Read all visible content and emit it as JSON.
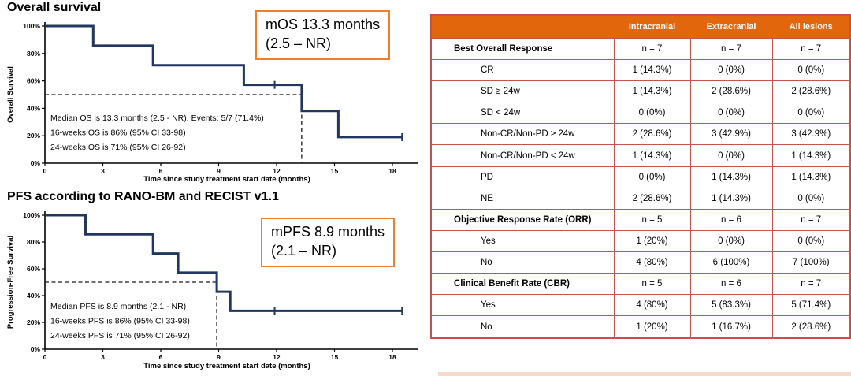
{
  "colors": {
    "navy": "#21375F",
    "orange_header": "#E2660C",
    "table_border": "#C5524B",
    "callout_border": "#ED7D31",
    "dash": "#1A1A1A"
  },
  "chart_data": [
    {
      "type": "line",
      "variant": "kaplan-meier-step",
      "title": "Overall survival",
      "xlabel": "Time since study treatment start date (months)",
      "ylabel": "Overall Survival",
      "xticks": [
        0,
        3,
        6,
        9,
        12,
        15,
        18
      ],
      "yticks": [
        0,
        20,
        40,
        60,
        80,
        100
      ],
      "xlim": [
        0,
        19
      ],
      "ylim": [
        0,
        100
      ],
      "grid": false,
      "step_points": [
        [
          0,
          100
        ],
        [
          2.5,
          100
        ],
        [
          2.5,
          85.7
        ],
        [
          5.6,
          85.7
        ],
        [
          5.6,
          71.4
        ],
        [
          10.3,
          71.4
        ],
        [
          10.3,
          57.1
        ],
        [
          13.3,
          57.1
        ],
        [
          13.3,
          38.1
        ],
        [
          15.2,
          38.1
        ],
        [
          15.2,
          19
        ],
        [
          18.5,
          19
        ]
      ],
      "censor_marks": [
        [
          11.9,
          57.1
        ],
        [
          18.5,
          19
        ]
      ],
      "median_line": {
        "x": 13.3,
        "y": 50
      },
      "annotations": [
        "Median OS is 13.3 months (2.5 - NR). Events: 5/7 (71.4%)",
        "16-weeks OS is 86% (95% CI 33-98)",
        "24-weeks OS is 71% (95% CI 26-92)"
      ],
      "callout": {
        "line1": "mOS 13.3 months",
        "line2": "(2.5 – NR)"
      }
    },
    {
      "type": "line",
      "variant": "kaplan-meier-step",
      "title": "PFS according to RANO-BM and RECIST v1.1",
      "xlabel": "Time since study treatment start date (months)",
      "ylabel": "Progression-Free Survival",
      "xticks": [
        0,
        3,
        6,
        9,
        12,
        15,
        18
      ],
      "yticks": [
        0,
        20,
        40,
        60,
        80,
        100
      ],
      "xlim": [
        0,
        19
      ],
      "ylim": [
        0,
        100
      ],
      "grid": false,
      "step_points": [
        [
          0,
          100
        ],
        [
          2.1,
          100
        ],
        [
          2.1,
          85.7
        ],
        [
          5.6,
          85.7
        ],
        [
          5.6,
          71.4
        ],
        [
          6.9,
          71.4
        ],
        [
          6.9,
          57.1
        ],
        [
          8.9,
          57.1
        ],
        [
          8.9,
          42.9
        ],
        [
          9.6,
          42.9
        ],
        [
          9.6,
          28.6
        ],
        [
          18.5,
          28.6
        ]
      ],
      "censor_marks": [
        [
          11.9,
          28.6
        ],
        [
          18.5,
          28.6
        ]
      ],
      "median_line": {
        "x": 8.9,
        "y": 50
      },
      "annotations": [
        "Median PFS is 8.9 months (2.1 - NR)",
        "16-weeks PFS is 86% (95% CI 33-98)",
        "24-weeks PFS is 71% (95% CI 26-92)"
      ],
      "callout": {
        "line1": "mPFS 8.9 months",
        "line2": "(2.1 – NR)"
      }
    }
  ],
  "table": {
    "columns": [
      "",
      "Intracranial",
      "Extracranial",
      "All lesions"
    ],
    "rows": [
      {
        "label": "Best Overall Response",
        "section": true,
        "values": [
          "n = 7",
          "n = 7",
          "n = 7"
        ]
      },
      {
        "label": "CR",
        "section": false,
        "values": [
          "1 (14.3%)",
          "0 (0%)",
          "0 (0%)"
        ]
      },
      {
        "label": "SD ≥ 24w",
        "section": false,
        "values": [
          "1 (14.3%)",
          "2 (28.6%)",
          "2 (28.6%)"
        ]
      },
      {
        "label": "SD < 24w",
        "section": false,
        "values": [
          "0 (0%)",
          "0 (0%)",
          "0 (0%)"
        ]
      },
      {
        "label": "Non-CR/Non-PD ≥ 24w",
        "section": false,
        "values": [
          "2 (28.6%)",
          "3 (42.9%)",
          "3 (42.9%)"
        ]
      },
      {
        "label": "Non-CR/Non-PD < 24w",
        "section": false,
        "values": [
          "1 (14.3%)",
          "0 (0%)",
          "1 (14.3%)"
        ]
      },
      {
        "label": "PD",
        "section": false,
        "values": [
          "0 (0%)",
          "1 (14.3%)",
          "1 (14.3%)"
        ]
      },
      {
        "label": "NE",
        "section": false,
        "values": [
          "2 (28.6%)",
          "1 (14.3%)",
          "0 (0%)"
        ]
      },
      {
        "label": "Objective Response Rate (ORR)",
        "section": true,
        "values": [
          "n = 5",
          "n = 6",
          "n = 7"
        ]
      },
      {
        "label": "Yes",
        "section": false,
        "values": [
          "1 (20%)",
          "0 (0%)",
          "0 (0%)"
        ]
      },
      {
        "label": "No",
        "section": false,
        "values": [
          "4 (80%)",
          "6 (100%)",
          "7 (100%)"
        ]
      },
      {
        "label": "Clinical Benefit Rate (CBR)",
        "section": true,
        "values": [
          "n = 5",
          "n = 6",
          "n = 7"
        ]
      },
      {
        "label": "Yes",
        "section": false,
        "values": [
          "4 (80%)",
          "5 (83.3%)",
          "5 (71.4%)"
        ]
      },
      {
        "label": "No",
        "section": false,
        "values": [
          "1 (20%)",
          "1 (16.7%)",
          "2 (28.6%)"
        ]
      }
    ]
  }
}
